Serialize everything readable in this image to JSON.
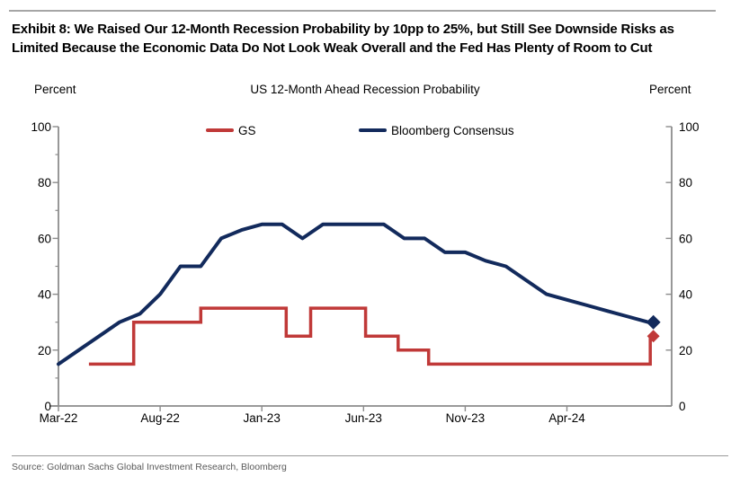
{
  "exhibit": {
    "title_line1": "Exhibit 8: We Raised Our 12-Month Recession Probability by 10pp to 25%, but Still See Downside Risks as",
    "title_line2": "Limited Because the Economic Data Do Not Look Weak Overall and the Fed Has Plenty of Room to Cut",
    "source": "Source: Goldman Sachs Global Investment Research, Bloomberg"
  },
  "chart_data": {
    "type": "line",
    "title": "US 12-Month Ahead Recession Probability",
    "left_axis_label": "Percent",
    "right_axis_label": "Percent",
    "ylim": [
      0,
      100
    ],
    "yticks": [
      0,
      20,
      40,
      60,
      80,
      100
    ],
    "y_minor_ticks": [
      10,
      30,
      50,
      70,
      90
    ],
    "x_unit": "month index, 0 = Mar-2022",
    "xlim": [
      0,
      30.15
    ],
    "xticks": [
      {
        "m": 0,
        "label": "Mar-22"
      },
      {
        "m": 5,
        "label": "Aug-22"
      },
      {
        "m": 10,
        "label": "Jan-23"
      },
      {
        "m": 15,
        "label": "Jun-23"
      },
      {
        "m": 20,
        "label": "Nov-23"
      },
      {
        "m": 25,
        "label": "Apr-24"
      }
    ],
    "legend": [
      {
        "label": "GS",
        "color": "#c03938"
      },
      {
        "label": "Bloomberg Consensus",
        "color": "#122a5c"
      }
    ],
    "series": [
      {
        "name": "Bloomberg Consensus",
        "color": "#122a5c",
        "line_width": 4,
        "months": [
          "Mar-22",
          "Apr-22",
          "May-22",
          "Jun-22",
          "Jul-22",
          "Aug-22",
          "Sep-22",
          "Oct-22",
          "Nov-22",
          "Dec-22",
          "Jan-23",
          "Feb-23",
          "Mar-23",
          "Apr-23",
          "May-23",
          "Jun-23",
          "Jul-23",
          "Aug-23",
          "Sep-23",
          "Oct-23",
          "Nov-23",
          "Dec-23",
          "Jan-24",
          "Feb-24",
          "Mar-24",
          "Apr-24",
          "May-24",
          "Jun-24",
          "Jul-24",
          "Aug-24"
        ],
        "values": [
          15,
          20,
          25,
          30,
          33,
          40,
          50,
          50,
          60,
          63,
          65,
          65,
          60,
          65,
          65,
          65,
          65,
          60,
          60,
          55,
          55,
          52,
          50,
          45,
          40,
          38,
          36,
          34,
          32,
          30
        ],
        "end_marker": {
          "m": 29.25,
          "value": 30,
          "shape": "diamond",
          "size": 8
        }
      },
      {
        "name": "GS",
        "color": "#c03938",
        "line_width": 3.5,
        "step_points": [
          [
            1.5,
            15
          ],
          [
            3.7,
            15
          ],
          [
            3.7,
            30
          ],
          [
            7,
            30
          ],
          [
            7,
            35
          ],
          [
            11.2,
            35
          ],
          [
            11.2,
            25
          ],
          [
            12.4,
            25
          ],
          [
            12.4,
            35
          ],
          [
            15.1,
            35
          ],
          [
            15.1,
            25
          ],
          [
            16.7,
            25
          ],
          [
            16.7,
            20
          ],
          [
            18.2,
            20
          ],
          [
            18.2,
            15
          ],
          [
            29.1,
            15
          ],
          [
            29.1,
            25
          ]
        ],
        "end_marker": {
          "m": 29.25,
          "value": 25,
          "shape": "diamond",
          "size": 7
        }
      }
    ],
    "axis_color": "#8c8c8c",
    "text_color": "#000000",
    "legend_position": "top-center",
    "grid": false
  }
}
